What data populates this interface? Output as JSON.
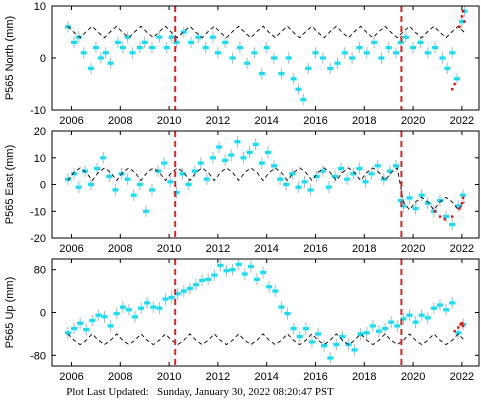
{
  "footer": {
    "label": "Plot Last Updated:",
    "timestamp": "Sunday, January 30, 2022 08:20:47 PST"
  },
  "colors": {
    "data": "#00e5ff",
    "error_bar": "#b3b3b3",
    "model": "#000000",
    "event": "#dd2222",
    "recent": "#ff0000"
  },
  "chart_data": [
    {
      "type": "scatter",
      "ylabel": "P565 North (mm)",
      "xlim": [
        2005.2,
        2022.7
      ],
      "ylim": [
        -10,
        10
      ],
      "xticks": [
        2006,
        2008,
        2010,
        2012,
        2014,
        2016,
        2018,
        2020,
        2022
      ],
      "yticks": [
        -10,
        0,
        10
      ],
      "event_lines": [
        2010.25,
        2019.52
      ],
      "series": [
        {
          "x": [
            2005.85,
            2006.1,
            2006.3,
            2006.5,
            2006.8,
            2007.0,
            2007.2,
            2007.4,
            2007.6,
            2007.9,
            2008.1,
            2008.3,
            2008.5,
            2008.8,
            2009.0,
            2009.3,
            2009.6,
            2009.9,
            2010.1,
            2010.3,
            2010.6,
            2010.9,
            2011.2,
            2011.5,
            2011.8,
            2012.0,
            2012.3,
            2012.6,
            2012.9,
            2013.2,
            2013.5,
            2013.8,
            2014.0,
            2014.3,
            2014.6,
            2014.9,
            2015.1,
            2015.3,
            2015.5,
            2015.7,
            2016.0,
            2016.3,
            2016.6,
            2016.9,
            2017.2,
            2017.5,
            2017.8,
            2018.1,
            2018.4,
            2018.7,
            2019.0,
            2019.3,
            2019.5,
            2019.7,
            2020.0,
            2020.3,
            2020.6,
            2020.9,
            2021.2,
            2021.4,
            2021.6,
            2021.8,
            2022.0,
            2022.1
          ],
          "y": [
            6,
            3,
            4,
            1,
            -2,
            2,
            0,
            1,
            -1,
            3,
            2,
            4,
            1,
            2,
            3,
            2,
            4,
            2,
            4,
            3,
            5,
            3,
            4,
            2,
            4,
            1,
            3,
            0,
            2,
            -1,
            1,
            -3,
            2,
            0,
            -3,
            0,
            -4,
            -6,
            -8,
            -2,
            1,
            0,
            -2,
            -1,
            1,
            0,
            2,
            1,
            3,
            0,
            2,
            1,
            3,
            4,
            2,
            3,
            1,
            2,
            0,
            -2,
            1,
            -4,
            7,
            9
          ]
        }
      ],
      "model": {
        "x": [
          2005.85,
          2006.1,
          2006.35,
          2006.6,
          2006.85,
          2007.1,
          2007.35,
          2007.6,
          2007.85,
          2008.1,
          2008.35,
          2008.6,
          2008.85,
          2009.1,
          2009.35,
          2009.6,
          2009.85,
          2010.1,
          2010.35,
          2010.6,
          2010.85,
          2011.1,
          2011.35,
          2011.6,
          2011.85,
          2012.1,
          2012.35,
          2012.6,
          2012.85,
          2013.1,
          2013.35,
          2013.6,
          2013.85,
          2014.1,
          2014.35,
          2014.6,
          2014.85,
          2015.1,
          2015.35,
          2015.6,
          2015.85,
          2016.1,
          2016.35,
          2016.6,
          2016.85,
          2017.1,
          2017.35,
          2017.6,
          2017.85,
          2018.1,
          2018.35,
          2018.6,
          2018.85,
          2019.1,
          2019.35,
          2019.6,
          2019.85,
          2020.1,
          2020.35,
          2020.6,
          2020.85,
          2021.1,
          2021.35,
          2021.6,
          2021.85,
          2022.1
        ],
        "y": [
          6.1,
          4.9,
          3.9,
          5.1,
          6.1,
          4.9,
          3.9,
          5.1,
          6.1,
          4.9,
          3.9,
          5.1,
          6.1,
          4.9,
          3.9,
          5.1,
          6.1,
          4.9,
          3.9,
          5.1,
          6.1,
          4.9,
          3.9,
          5.1,
          6.1,
          4.9,
          3.9,
          5.1,
          6.1,
          4.9,
          3.9,
          5.1,
          6.1,
          4.9,
          3.9,
          5.1,
          6.1,
          4.9,
          3.9,
          5.1,
          6.1,
          4.9,
          3.9,
          5.1,
          6.1,
          4.9,
          3.9,
          5.1,
          6.1,
          4.9,
          3.9,
          5.1,
          6.1,
          4.9,
          3.9,
          5.1,
          6.1,
          4.9,
          3.9,
          5.1,
          6.1,
          4.9,
          3.9,
          5.1,
          6.1,
          4.9
        ]
      },
      "recent": {
        "x": [
          2021.6,
          2021.7,
          2021.9,
          2022.0,
          2022.05,
          2022.1
        ],
        "y": [
          -6,
          -5,
          6,
          8,
          9,
          7
        ]
      }
    },
    {
      "type": "scatter",
      "ylabel": "P565 East (mm)",
      "xlim": [
        2005.2,
        2022.7
      ],
      "ylim": [
        -20,
        20
      ],
      "xticks": [
        2006,
        2008,
        2010,
        2012,
        2014,
        2016,
        2018,
        2020,
        2022
      ],
      "yticks": [
        -20,
        -10,
        0,
        10,
        20
      ],
      "event_lines": [
        2010.25,
        2019.52
      ],
      "series": [
        {
          "x": [
            2005.85,
            2006.1,
            2006.3,
            2006.55,
            2006.8,
            2007.05,
            2007.3,
            2007.55,
            2007.8,
            2008.05,
            2008.3,
            2008.55,
            2008.8,
            2009.05,
            2009.3,
            2009.55,
            2009.8,
            2010.05,
            2010.3,
            2010.55,
            2010.8,
            2011.05,
            2011.3,
            2011.55,
            2011.8,
            2012.05,
            2012.3,
            2012.55,
            2012.8,
            2013.05,
            2013.3,
            2013.55,
            2013.8,
            2014.05,
            2014.3,
            2014.55,
            2014.8,
            2015.05,
            2015.3,
            2015.55,
            2015.8,
            2016.05,
            2016.3,
            2016.55,
            2016.8,
            2017.05,
            2017.3,
            2017.55,
            2017.8,
            2018.05,
            2018.3,
            2018.55,
            2018.8,
            2019.05,
            2019.3,
            2019.5,
            2019.6,
            2019.85,
            2020.1,
            2020.35,
            2020.6,
            2020.85,
            2021.1,
            2021.35,
            2021.6,
            2021.85,
            2022.05
          ],
          "y": [
            2,
            4,
            -1,
            5,
            0,
            6,
            10,
            3,
            -2,
            4,
            2,
            -4,
            0,
            -10,
            -2,
            5,
            8,
            1,
            -3,
            4,
            0,
            5,
            8,
            2,
            10,
            14,
            9,
            11,
            16,
            10,
            12,
            15,
            8,
            12,
            7,
            2,
            0,
            4,
            -1,
            1,
            -2,
            3,
            5,
            -1,
            3,
            6,
            2,
            4,
            6,
            1,
            4,
            7,
            2,
            5,
            7,
            -6,
            -8,
            -5,
            -9,
            -4,
            -7,
            -10,
            -6,
            -12,
            -15,
            -8,
            -4
          ]
        }
      ],
      "model": {
        "x": [
          2005.85,
          2006.1,
          2006.35,
          2006.6,
          2006.85,
          2007.1,
          2007.35,
          2007.6,
          2007.85,
          2008.1,
          2008.35,
          2008.6,
          2008.85,
          2009.1,
          2009.35,
          2009.6,
          2009.85,
          2010.1,
          2010.35,
          2010.6,
          2010.85,
          2011.1,
          2011.35,
          2011.6,
          2011.85,
          2012.1,
          2012.35,
          2012.6,
          2012.85,
          2013.1,
          2013.35,
          2013.6,
          2013.85,
          2014.1,
          2014.35,
          2014.6,
          2014.85,
          2015.1,
          2015.35,
          2015.6,
          2015.85,
          2016.1,
          2016.35,
          2016.6,
          2016.85,
          2017.1,
          2017.35,
          2017.6,
          2017.85,
          2018.1,
          2018.35,
          2018.6,
          2018.85,
          2019.1,
          2019.35,
          2019.6,
          2019.85,
          2020.1,
          2020.35,
          2020.6,
          2020.85,
          2021.1,
          2021.35,
          2021.6,
          2021.85,
          2022.1
        ],
        "y": [
          1.5,
          4.5,
          6.2,
          4.5,
          1.5,
          4.5,
          6.2,
          4.5,
          1.5,
          4.5,
          6.2,
          4.5,
          1.5,
          4.5,
          6.2,
          4.5,
          1.5,
          4.5,
          6.2,
          4.5,
          1.5,
          4.5,
          6.2,
          4.5,
          1.5,
          4.5,
          6.2,
          4.5,
          1.5,
          4.5,
          6.2,
          4.5,
          1.5,
          4.5,
          6.2,
          4.5,
          1.5,
          4.5,
          6.2,
          4.5,
          1.5,
          4.5,
          6.2,
          4.5,
          1.5,
          4.5,
          6.2,
          4.5,
          1.5,
          4.5,
          6.2,
          4.5,
          1.5,
          4.5,
          6.2,
          -6.5,
          -9.5,
          -6.5,
          -4.8,
          -6.5,
          -9.5,
          -6.5,
          -4.8,
          -6.5,
          -9.5,
          -6.5
        ]
      },
      "recent": {
        "x": [
          2020.9,
          2021.1,
          2021.3,
          2021.6,
          2021.9,
          2022.0,
          2022.05
        ],
        "y": [
          -10,
          -12,
          -13,
          -12,
          -9,
          -7,
          -5
        ]
      }
    },
    {
      "type": "scatter",
      "ylabel": "P565 Up (mm)",
      "xlim": [
        2005.2,
        2022.7
      ],
      "ylim": [
        -100,
        100
      ],
      "xticks": [
        2006,
        2008,
        2010,
        2012,
        2014,
        2016,
        2018,
        2020,
        2022
      ],
      "yticks": [
        -80,
        0,
        80
      ],
      "event_lines": [
        2010.25,
        2019.52
      ],
      "series": [
        {
          "x": [
            2005.85,
            2006.1,
            2006.35,
            2006.6,
            2006.85,
            2007.1,
            2007.35,
            2007.6,
            2007.85,
            2008.1,
            2008.35,
            2008.6,
            2008.85,
            2009.1,
            2009.35,
            2009.6,
            2009.85,
            2010.1,
            2010.35,
            2010.6,
            2010.85,
            2011.1,
            2011.35,
            2011.6,
            2011.85,
            2012.1,
            2012.35,
            2012.6,
            2012.85,
            2013.1,
            2013.35,
            2013.6,
            2013.85,
            2014.1,
            2014.35,
            2014.6,
            2014.85,
            2015.1,
            2015.35,
            2015.6,
            2015.85,
            2016.1,
            2016.35,
            2016.6,
            2016.85,
            2017.1,
            2017.35,
            2017.6,
            2017.85,
            2018.1,
            2018.35,
            2018.6,
            2018.85,
            2019.1,
            2019.35,
            2019.6,
            2019.85,
            2020.1,
            2020.35,
            2020.6,
            2020.85,
            2021.1,
            2021.35,
            2021.6,
            2021.85,
            2022.05
          ],
          "y": [
            -38,
            -30,
            -20,
            -32,
            -15,
            -5,
            -8,
            -25,
            -2,
            10,
            5,
            -8,
            8,
            18,
            10,
            8,
            25,
            28,
            35,
            40,
            45,
            52,
            60,
            62,
            70,
            88,
            78,
            80,
            90,
            72,
            86,
            62,
            75,
            48,
            40,
            10,
            -2,
            -30,
            -45,
            -30,
            -55,
            -40,
            -62,
            -85,
            -60,
            -45,
            -60,
            -70,
            -40,
            -38,
            -25,
            -35,
            -30,
            -18,
            -25,
            -12,
            -5,
            -18,
            -5,
            -10,
            8,
            14,
            5,
            18,
            -38,
            -22
          ]
        }
      ],
      "model": {
        "x": [
          2005.85,
          2006.1,
          2006.35,
          2006.6,
          2006.85,
          2007.1,
          2007.35,
          2007.6,
          2007.85,
          2008.1,
          2008.35,
          2008.6,
          2008.85,
          2009.1,
          2009.35,
          2009.6,
          2009.85,
          2010.1,
          2010.35,
          2010.6,
          2010.85,
          2011.1,
          2011.35,
          2011.6,
          2011.85,
          2012.1,
          2012.35,
          2012.6,
          2012.85,
          2013.1,
          2013.35,
          2013.6,
          2013.85,
          2014.1,
          2014.35,
          2014.6,
          2014.85,
          2015.1,
          2015.35,
          2015.6,
          2015.85,
          2016.1,
          2016.35,
          2016.6,
          2016.85,
          2017.1,
          2017.35,
          2017.6,
          2017.85,
          2018.1,
          2018.35,
          2018.6,
          2018.85,
          2019.1,
          2019.35,
          2019.6,
          2019.85,
          2020.1,
          2020.35,
          2020.6,
          2020.85,
          2021.1,
          2021.35,
          2021.6,
          2021.85,
          2022.1
        ],
        "y": [
          -40,
          -52,
          -60,
          -52,
          -40,
          -52,
          -60,
          -52,
          -40,
          -52,
          -60,
          -52,
          -40,
          -52,
          -60,
          -52,
          -40,
          -52,
          -60,
          -52,
          -40,
          -52,
          -60,
          -52,
          -40,
          -52,
          -60,
          -52,
          -40,
          -52,
          -60,
          -52,
          -40,
          -52,
          -60,
          -52,
          -40,
          -52,
          -60,
          -52,
          -40,
          -52,
          -60,
          -52,
          -40,
          -52,
          -60,
          -52,
          -40,
          -52,
          -60,
          -52,
          -40,
          -52,
          -60,
          -52,
          -40,
          -52,
          -60,
          -52,
          -40,
          -52,
          -60,
          -52,
          -40,
          -52
        ]
      },
      "recent": {
        "x": [
          2021.7,
          2021.85,
          2021.95,
          2022.0,
          2022.05
        ],
        "y": [
          -35,
          -28,
          -22,
          -20,
          -25
        ]
      }
    }
  ]
}
